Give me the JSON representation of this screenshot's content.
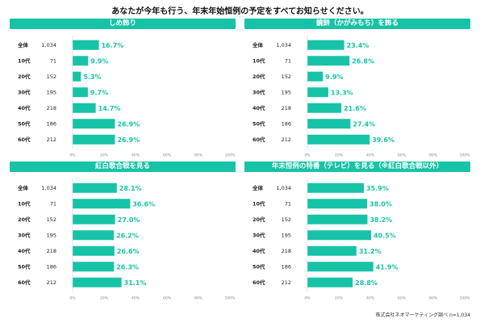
{
  "page": {
    "title": "あなたが今年も行う、年末年始恒例の予定をすべてお知らせください。",
    "source": "株式会社ネオマーケティング調べ n=1,034"
  },
  "colors": {
    "accent": "#17c3a6",
    "text": "#222222",
    "axis": "#cccccc"
  },
  "chart_data": [
    {
      "type": "bar",
      "orientation": "horizontal",
      "title": "しめ飾り",
      "categories": [
        "全体",
        "10代",
        "20代",
        "30代",
        "40代",
        "50代",
        "60代"
      ],
      "n": [
        "1,034",
        "71",
        "152",
        "195",
        "218",
        "186",
        "212"
      ],
      "values": [
        16.7,
        9.9,
        5.3,
        9.7,
        14.7,
        26.9,
        26.9
      ],
      "xlim": [
        0,
        100
      ],
      "ticks": [
        "0%",
        "20%",
        "40%",
        "60%",
        "80%",
        "100%"
      ],
      "grid": false
    },
    {
      "type": "bar",
      "orientation": "horizontal",
      "title": "鏡餅（かがみもち）を飾る",
      "categories": [
        "全体",
        "10代",
        "20代",
        "30代",
        "40代",
        "50代",
        "60代"
      ],
      "n": [
        "1,034",
        "71",
        "152",
        "195",
        "218",
        "186",
        "212"
      ],
      "values": [
        23.4,
        26.8,
        9.9,
        13.3,
        21.6,
        27.4,
        39.6
      ],
      "xlim": [
        0,
        100
      ],
      "ticks": [
        "0%",
        "20%",
        "40%",
        "60%",
        "80%",
        "100%"
      ],
      "grid": false
    },
    {
      "type": "bar",
      "orientation": "horizontal",
      "title": "紅白歌合戦を見る",
      "categories": [
        "全体",
        "10代",
        "20代",
        "30代",
        "40代",
        "50代",
        "60代"
      ],
      "n": [
        "1,034",
        "71",
        "152",
        "195",
        "218",
        "186",
        "212"
      ],
      "values": [
        28.1,
        36.6,
        27.0,
        26.2,
        26.6,
        26.3,
        31.1
      ],
      "xlim": [
        0,
        100
      ],
      "ticks": [
        "0%",
        "20%",
        "40%",
        "60%",
        "80%",
        "100%"
      ],
      "grid": false
    },
    {
      "type": "bar",
      "orientation": "horizontal",
      "title": "年末恒例の特番（テレビ）を見る（※紅白歌合戦以外）",
      "categories": [
        "全体",
        "10代",
        "20代",
        "30代",
        "40代",
        "50代",
        "60代"
      ],
      "n": [
        "1,034",
        "71",
        "152",
        "195",
        "218",
        "186",
        "212"
      ],
      "values": [
        35.9,
        38.0,
        38.2,
        40.5,
        31.2,
        41.9,
        28.8
      ],
      "xlim": [
        0,
        100
      ],
      "ticks": [
        "0%",
        "20%",
        "40%",
        "60%",
        "80%",
        "100%"
      ],
      "grid": false
    }
  ]
}
